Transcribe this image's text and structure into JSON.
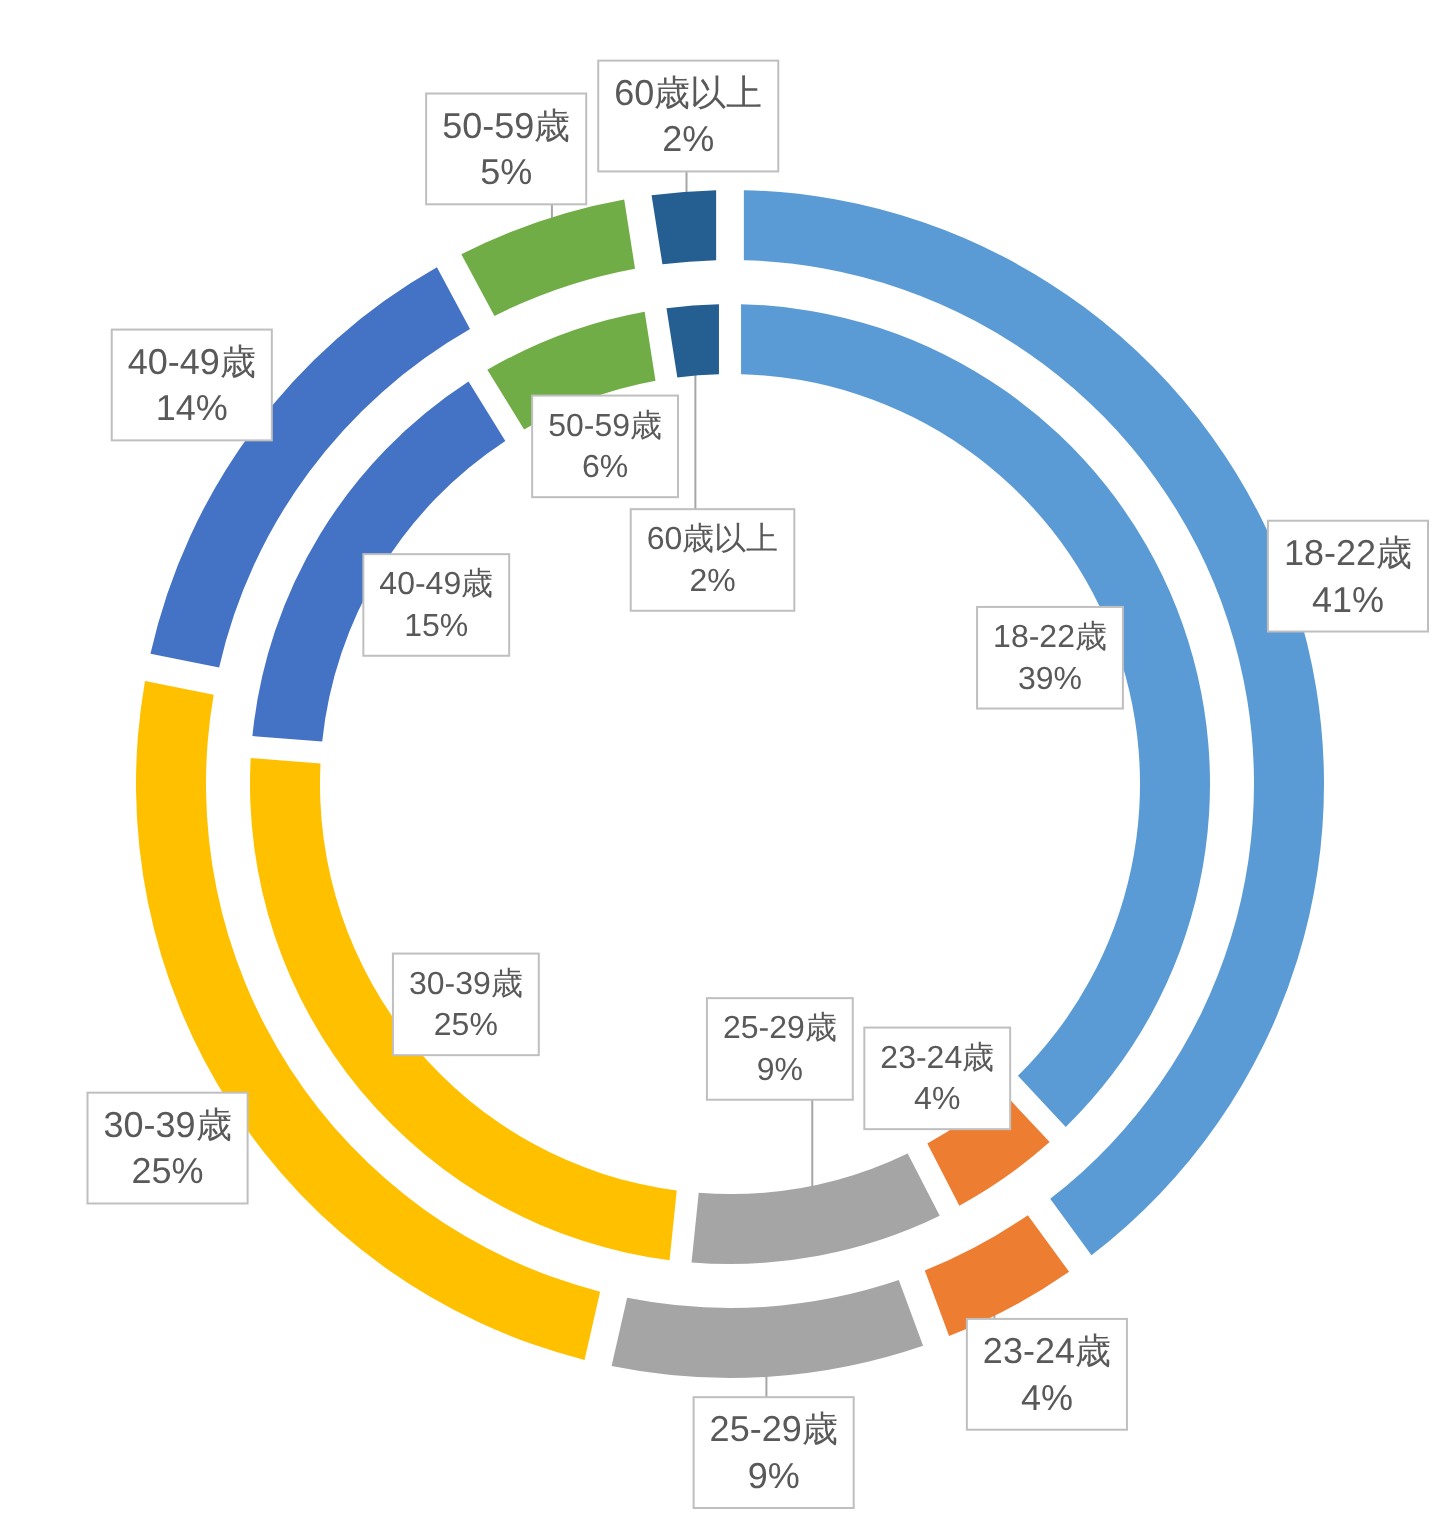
{
  "chart_data": {
    "type": "donut",
    "categories": [
      "18-22歳",
      "23-24歳",
      "25-29歳",
      "30-39歳",
      "40-49歳",
      "50-59歳",
      "60歳以上"
    ],
    "colors": [
      "#5b9bd5",
      "#ed7d31",
      "#a5a5a5",
      "#ffc000",
      "#4472c4",
      "#70ad47",
      "#255e91"
    ],
    "series": [
      {
        "values": [
          41,
          4,
          9,
          25,
          14,
          5,
          2
        ],
        "value_labels": [
          "41%",
          "4%",
          "9%",
          "25%",
          "14%",
          "5%",
          "2%"
        ]
      },
      {
        "values": [
          39,
          4,
          9,
          25,
          15,
          6,
          2
        ],
        "value_labels": [
          "39%",
          "4%",
          "9%",
          "25%",
          "15%",
          "6%",
          "2%"
        ]
      }
    ]
  }
}
